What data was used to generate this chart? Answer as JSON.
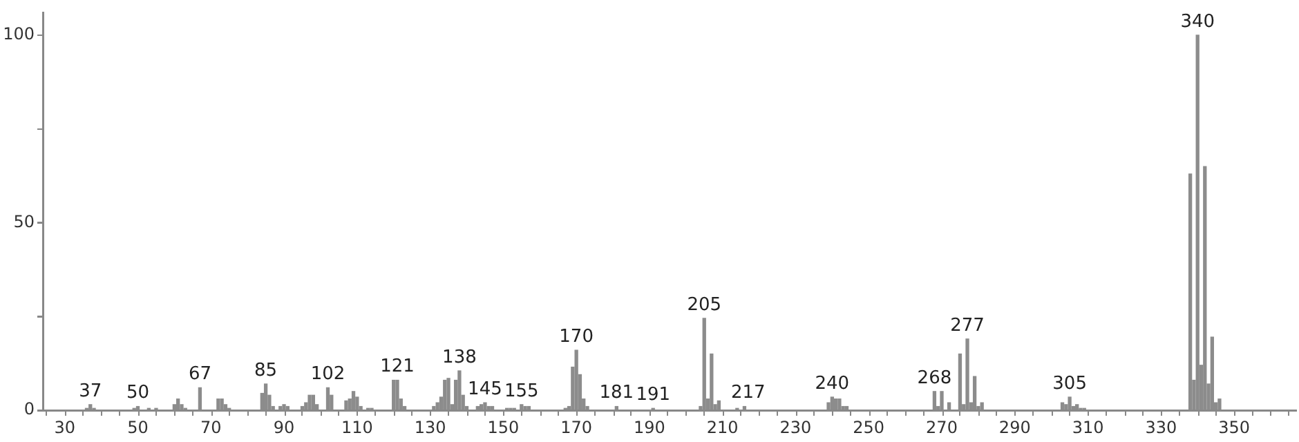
{
  "chart_data": {
    "type": "bar",
    "color": "#8c8c8c",
    "x": [
      36,
      37,
      38,
      49,
      50,
      53,
      55,
      60,
      61,
      62,
      63,
      67,
      72,
      73,
      74,
      75,
      84,
      85,
      86,
      87,
      89,
      90,
      91,
      95,
      96,
      97,
      98,
      99,
      102,
      103,
      107,
      108,
      109,
      110,
      111,
      113,
      114,
      120,
      121,
      122,
      123,
      131,
      132,
      133,
      134,
      135,
      136,
      137,
      138,
      139,
      140,
      143,
      144,
      145,
      146,
      147,
      151,
      152,
      153,
      155,
      156,
      157,
      167,
      168,
      169,
      170,
      171,
      172,
      173,
      181,
      191,
      204,
      205,
      206,
      207,
      208,
      209,
      214,
      216,
      239,
      240,
      241,
      242,
      243,
      244,
      268,
      269,
      270,
      272,
      275,
      276,
      277,
      278,
      279,
      280,
      281,
      303,
      304,
      305,
      306,
      307,
      308,
      309,
      338,
      339,
      340,
      341,
      342,
      343,
      344,
      345,
      346
    ],
    "values": [
      0.5,
      1.5,
      0.5,
      0.5,
      1,
      0.5,
      0.5,
      1.5,
      3,
      1.5,
      0.5,
      6,
      3,
      3,
      1.5,
      0.5,
      4.5,
      7,
      4,
      1,
      1,
      1.5,
      1,
      1,
      2,
      4,
      4,
      1.5,
      6,
      4,
      2.5,
      3,
      5,
      3.5,
      1,
      0.5,
      0.5,
      8,
      8,
      3,
      1,
      1,
      2,
      3.5,
      8,
      8.5,
      1.5,
      8,
      10.5,
      4,
      1,
      1,
      1.5,
      2,
      1,
      1,
      0.5,
      0.5,
      0.5,
      1.5,
      1,
      1,
      0.5,
      1,
      11.5,
      16,
      9.5,
      3,
      1,
      1,
      0.5,
      1,
      24.5,
      3,
      15,
      1.5,
      2.5,
      0.5,
      1,
      2,
      3.5,
      3,
      3,
      1,
      1,
      5,
      1,
      5,
      2,
      15,
      1.5,
      19,
      2,
      9,
      1,
      2,
      2,
      1.5,
      3.5,
      1,
      1.5,
      0.5,
      0.5,
      63,
      8,
      100,
      12,
      65,
      7,
      19.5,
      2,
      3
    ],
    "xlim": [
      24,
      367
    ],
    "xticks": [
      30,
      {
        "value": 40,
        "label": null
      },
      50,
      {
        "value": 60,
        "label": null
      },
      70,
      {
        "value": 80,
        "label": null
      },
      90,
      {
        "value": 100,
        "label": null
      },
      110,
      {
        "value": 120,
        "label": null
      },
      130,
      {
        "value": 140,
        "label": null
      },
      150,
      {
        "value": 160,
        "label": null
      },
      170,
      {
        "value": 180,
        "label": null
      },
      190,
      {
        "value": 200,
        "label": null
      },
      210,
      {
        "value": 220,
        "label": null
      },
      230,
      {
        "value": 240,
        "label": null
      },
      250,
      {
        "value": 260,
        "label": null
      },
      270,
      {
        "value": 280,
        "label": null
      },
      290,
      {
        "value": 300,
        "label": null
      },
      310,
      {
        "value": 320,
        "label": null
      },
      330,
      {
        "value": 340,
        "label": null
      },
      350,
      {
        "value": 360,
        "label": null
      }
    ],
    "ylim": [
      0,
      106
    ],
    "yticks": [
      0,
      {
        "value": 25,
        "label": null
      },
      50,
      {
        "value": 75,
        "label": null
      },
      100
    ],
    "grid": false,
    "legend": false,
    "annotations": [
      {
        "text": "37",
        "x": 37,
        "y": 1.5
      },
      {
        "text": "50",
        "x": 50,
        "y": 1
      },
      {
        "text": "67",
        "x": 67,
        "y": 6
      },
      {
        "text": "85",
        "x": 85,
        "y": 7
      },
      {
        "text": "102",
        "x": 102,
        "y": 6
      },
      {
        "text": "121",
        "x": 121,
        "y": 8
      },
      {
        "text": "138",
        "x": 138,
        "y": 10.5
      },
      {
        "text": "145",
        "x": 145,
        "y": 2
      },
      {
        "text": "155",
        "x": 155,
        "y": 1.5
      },
      {
        "text": "170",
        "x": 170,
        "y": 16
      },
      {
        "text": "181",
        "x": 181,
        "y": 1
      },
      {
        "text": "191",
        "x": 191,
        "y": 0.5
      },
      {
        "text": "205",
        "x": 205,
        "y": 24.5
      },
      {
        "text": "217",
        "x": 217,
        "y": 1
      },
      {
        "text": "240",
        "x": 240,
        "y": 3.5
      },
      {
        "text": "268",
        "x": 268,
        "y": 5
      },
      {
        "text": "277",
        "x": 277,
        "y": 19
      },
      {
        "text": "305",
        "x": 305,
        "y": 3.5
      },
      {
        "text": "340",
        "x": 340,
        "y": 100
      }
    ]
  }
}
